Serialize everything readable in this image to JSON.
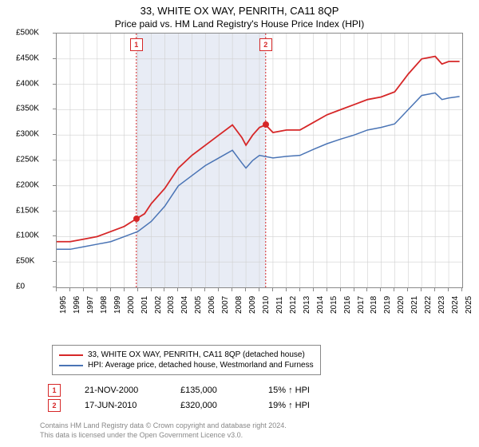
{
  "title": "33, WHITE OX WAY, PENRITH, CA11 8QP",
  "subtitle": "Price paid vs. HM Land Registry's House Price Index (HPI)",
  "chart": {
    "type": "line",
    "background_color": "#ffffff",
    "border_color": "#888888",
    "grid_color": "#d0d0d0",
    "ylim": [
      0,
      500000
    ],
    "ytick_step": 50000,
    "y_prefix": "£",
    "y_suffix": "K",
    "x_years": [
      1995,
      1996,
      1997,
      1998,
      1999,
      2000,
      2001,
      2002,
      2003,
      2004,
      2005,
      2006,
      2007,
      2008,
      2009,
      2010,
      2011,
      2012,
      2013,
      2014,
      2015,
      2016,
      2017,
      2018,
      2019,
      2020,
      2021,
      2022,
      2023,
      2024,
      2025
    ],
    "shaded_bands": [
      {
        "x_start": 2000.89,
        "x_end": 2010.46,
        "color": "#e8ecf5"
      }
    ],
    "vlines": [
      {
        "x": 2000.89,
        "color": "#d62728",
        "dash": true
      },
      {
        "x": 2010.46,
        "color": "#d62728",
        "dash": true
      }
    ],
    "markers_top": [
      {
        "x": 2000.89,
        "label": "1"
      },
      {
        "x": 2010.46,
        "label": "2"
      }
    ],
    "sale_points": [
      {
        "x": 2000.89,
        "y": 135000
      },
      {
        "x": 2010.46,
        "y": 320000
      }
    ],
    "series": [
      {
        "name": "price_paid",
        "label": "33, WHITE OX WAY, PENRITH, CA11 8QP (detached house)",
        "color": "#d62728",
        "width": 1.8,
        "data": [
          [
            1995,
            90000
          ],
          [
            1996,
            90000
          ],
          [
            1997,
            95000
          ],
          [
            1998,
            100000
          ],
          [
            1999,
            110000
          ],
          [
            2000,
            120000
          ],
          [
            2000.89,
            135000
          ],
          [
            2001.5,
            145000
          ],
          [
            2002,
            165000
          ],
          [
            2003,
            195000
          ],
          [
            2004,
            235000
          ],
          [
            2005,
            260000
          ],
          [
            2006,
            280000
          ],
          [
            2007,
            300000
          ],
          [
            2008,
            320000
          ],
          [
            2008.7,
            295000
          ],
          [
            2009,
            280000
          ],
          [
            2009.5,
            300000
          ],
          [
            2010,
            315000
          ],
          [
            2010.46,
            320000
          ],
          [
            2011,
            305000
          ],
          [
            2012,
            310000
          ],
          [
            2013,
            310000
          ],
          [
            2014,
            325000
          ],
          [
            2015,
            340000
          ],
          [
            2016,
            350000
          ],
          [
            2017,
            360000
          ],
          [
            2018,
            370000
          ],
          [
            2019,
            375000
          ],
          [
            2020,
            385000
          ],
          [
            2021,
            420000
          ],
          [
            2022,
            450000
          ],
          [
            2023,
            455000
          ],
          [
            2023.5,
            440000
          ],
          [
            2024,
            445000
          ],
          [
            2024.8,
            445000
          ]
        ]
      },
      {
        "name": "hpi",
        "label": "HPI: Average price, detached house, Westmorland and Furness",
        "color": "#4a74b5",
        "width": 1.5,
        "data": [
          [
            1995,
            75000
          ],
          [
            1996,
            75000
          ],
          [
            1997,
            80000
          ],
          [
            1998,
            85000
          ],
          [
            1999,
            90000
          ],
          [
            2000,
            100000
          ],
          [
            2001,
            110000
          ],
          [
            2002,
            130000
          ],
          [
            2003,
            160000
          ],
          [
            2004,
            200000
          ],
          [
            2005,
            220000
          ],
          [
            2006,
            240000
          ],
          [
            2007,
            255000
          ],
          [
            2008,
            270000
          ],
          [
            2008.7,
            245000
          ],
          [
            2009,
            235000
          ],
          [
            2009.5,
            250000
          ],
          [
            2010,
            260000
          ],
          [
            2011,
            255000
          ],
          [
            2012,
            258000
          ],
          [
            2013,
            260000
          ],
          [
            2014,
            272000
          ],
          [
            2015,
            283000
          ],
          [
            2016,
            292000
          ],
          [
            2017,
            300000
          ],
          [
            2018,
            310000
          ],
          [
            2019,
            315000
          ],
          [
            2020,
            322000
          ],
          [
            2021,
            350000
          ],
          [
            2022,
            378000
          ],
          [
            2023,
            383000
          ],
          [
            2023.5,
            370000
          ],
          [
            2024,
            373000
          ],
          [
            2024.8,
            376000
          ]
        ]
      }
    ]
  },
  "legend": {
    "items": [
      {
        "color": "#d62728",
        "label": "33, WHITE OX WAY, PENRITH, CA11 8QP (detached house)"
      },
      {
        "color": "#4a74b5",
        "label": "HPI: Average price, detached house, Westmorland and Furness"
      }
    ]
  },
  "sales": [
    {
      "n": "1",
      "date": "21-NOV-2000",
      "price": "£135,000",
      "delta": "15% ↑ HPI"
    },
    {
      "n": "2",
      "date": "17-JUN-2010",
      "price": "£320,000",
      "delta": "19% ↑ HPI"
    }
  ],
  "footnote_line1": "Contains HM Land Registry data © Crown copyright and database right 2024.",
  "footnote_line2": "This data is licensed under the Open Government Licence v3.0."
}
